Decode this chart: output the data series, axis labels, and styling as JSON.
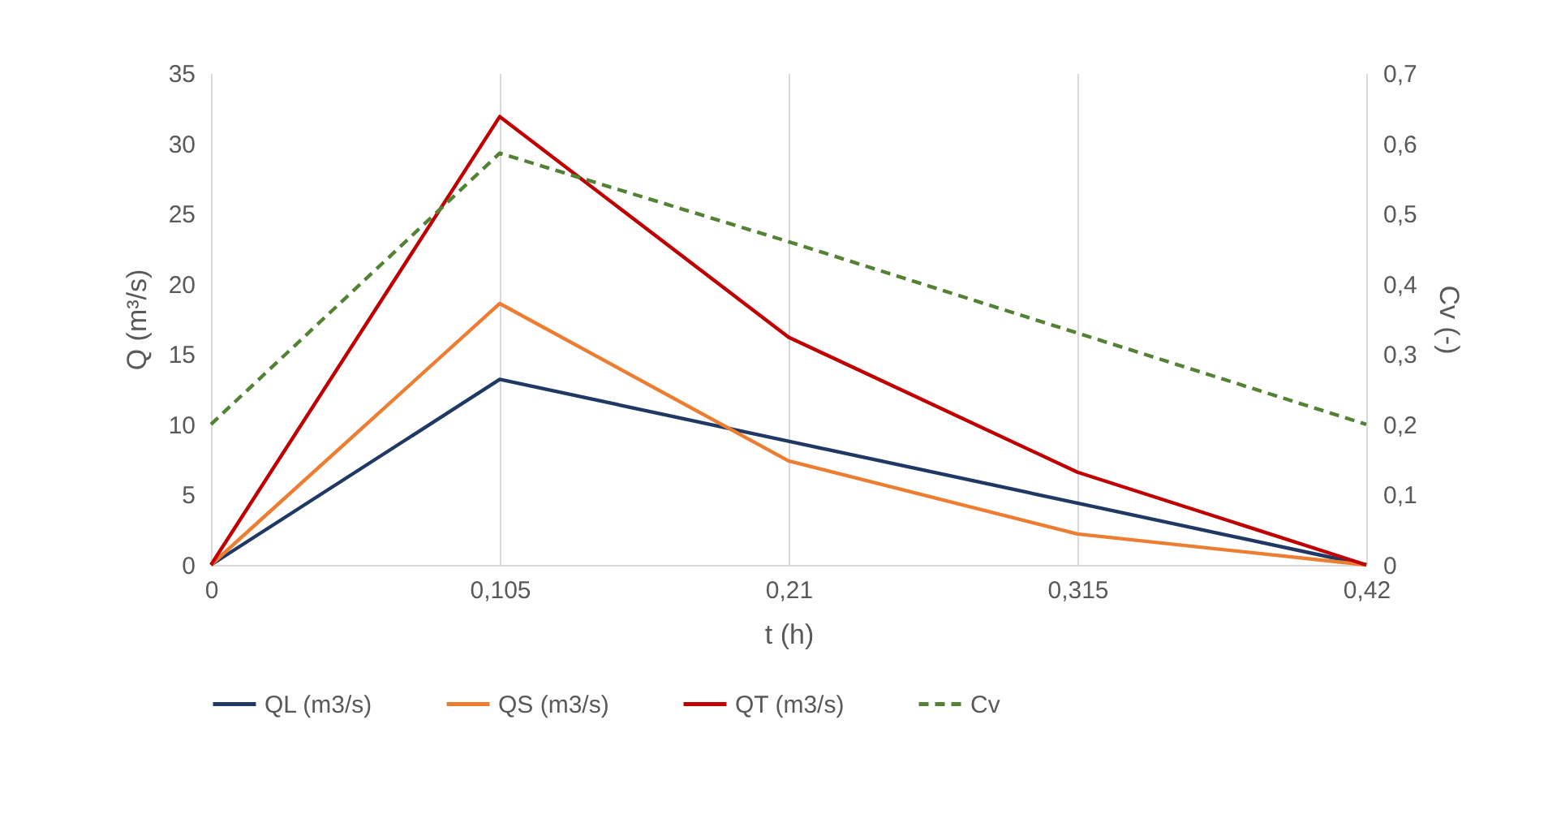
{
  "chart_data": {
    "type": "line",
    "xlabel": "t (h)",
    "ylabel": "Q (m³/s)",
    "y2label": "Cv (-)",
    "categories": [
      "0",
      "0,105",
      "0,21",
      "0,315",
      "0,42"
    ],
    "series": [
      {
        "name": "QL (m3/s)",
        "color": "#203864",
        "values": [
          0,
          13.2,
          8.8,
          4.4,
          0
        ]
      },
      {
        "name": "QS (m3/s)",
        "color": "#ed7d31",
        "values": [
          0,
          18.6,
          7.4,
          2.2,
          0
        ]
      },
      {
        "name": "QT (m3/s)",
        "color": "#c00000",
        "values": [
          0,
          31.9,
          16.2,
          6.6,
          0
        ]
      },
      {
        "name": "Cv",
        "color": "#548235",
        "values": [
          0.2,
          0.586,
          0.46,
          0.33,
          0.2
        ],
        "axis": "y2",
        "line_style": "dashed"
      }
    ],
    "ylim": [
      0,
      35
    ],
    "yticks": [
      0,
      5,
      10,
      15,
      20,
      25,
      30,
      35
    ],
    "y2lim": [
      0,
      0.7
    ],
    "y2ticks": [
      0,
      {
        "value": 0.1,
        "label": "0,1"
      },
      {
        "value": 0.2,
        "label": "0,2"
      },
      {
        "value": 0.3,
        "label": "0,3"
      },
      {
        "value": 0.4,
        "label": "0,4"
      },
      {
        "value": 0.5,
        "label": "0,5"
      },
      {
        "value": 0.6,
        "label": "0,6"
      },
      {
        "value": 0.7,
        "label": "0,7"
      }
    ],
    "grid": "x",
    "legend": "bottom",
    "marker": "none",
    "line_style": "solid"
  }
}
